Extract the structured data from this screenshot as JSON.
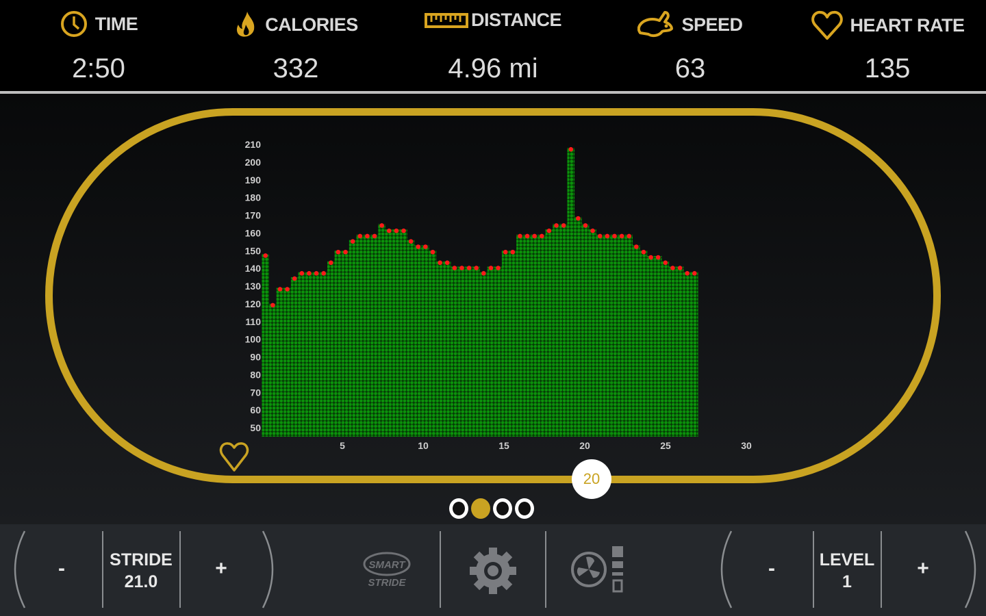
{
  "stats": [
    {
      "label": "TIME",
      "value": "2:50",
      "icon": "clock-icon"
    },
    {
      "label": "CALORIES",
      "value": "332",
      "icon": "flame-icon"
    },
    {
      "label": "DISTANCE",
      "value": "4.96 mi",
      "icon": "ruler-icon"
    },
    {
      "label": "SPEED",
      "value": "63",
      "icon": "rabbit-icon"
    },
    {
      "label": "HEART RATE",
      "value": "135",
      "icon": "heart-icon"
    }
  ],
  "speed_slider": {
    "value": "20"
  },
  "pager": {
    "pages": 4,
    "active": 2
  },
  "controls": {
    "stride": {
      "minus": "-",
      "label": "STRIDE",
      "value": "21.0",
      "plus": "+"
    },
    "smart_stride_logo": "SMART STRIDE",
    "level": {
      "minus": "-",
      "label": "LEVEL",
      "value": "1",
      "plus": "+"
    }
  },
  "colors": {
    "accent": "#c9a322",
    "bar": "#0a8a0a",
    "bar_top": "#ff1a1a",
    "bottom_bar": "#25282c"
  },
  "chart_data": {
    "type": "bar",
    "title": "",
    "xlabel": "",
    "ylabel": "",
    "ylim": [
      50,
      210
    ],
    "xlim": [
      0,
      30
    ],
    "yticks": [
      50,
      60,
      70,
      80,
      90,
      100,
      110,
      120,
      130,
      140,
      150,
      160,
      170,
      180,
      190,
      200,
      210
    ],
    "xticks": [
      5,
      10,
      15,
      20,
      25,
      30
    ],
    "grid": false,
    "x": [
      0.2,
      0.65,
      1.1,
      1.55,
      2,
      2.45,
      2.9,
      3.35,
      3.8,
      4.25,
      4.7,
      5.15,
      5.6,
      6.05,
      6.5,
      6.95,
      7.4,
      7.85,
      8.3,
      8.75,
      9.2,
      9.65,
      10.1,
      10.55,
      11,
      11.45,
      11.9,
      12.35,
      12.8,
      13.25,
      13.7,
      14.15,
      14.6,
      15.05,
      15.5,
      15.95,
      16.4,
      16.85,
      17.3,
      17.75,
      18.2,
      18.65,
      19.1,
      19.55,
      20,
      20.45,
      20.9,
      21.35,
      21.8,
      22.25,
      22.7,
      23.15,
      23.6,
      24.05,
      24.5,
      24.95,
      25.4,
      25.85,
      26.3,
      26.75
    ],
    "values": [
      148,
      120,
      129,
      129,
      135,
      138,
      138,
      138,
      138,
      144,
      150,
      150,
      156,
      159,
      159,
      159,
      165,
      162,
      162,
      162,
      156,
      153,
      153,
      150,
      144,
      144,
      141,
      141,
      141,
      141,
      138,
      141,
      141,
      150,
      150,
      159,
      159,
      159,
      159,
      162,
      165,
      165,
      208,
      169,
      165,
      162,
      159,
      159,
      159,
      159,
      159,
      153,
      150,
      147,
      147,
      144,
      141,
      141,
      138,
      138
    ]
  }
}
